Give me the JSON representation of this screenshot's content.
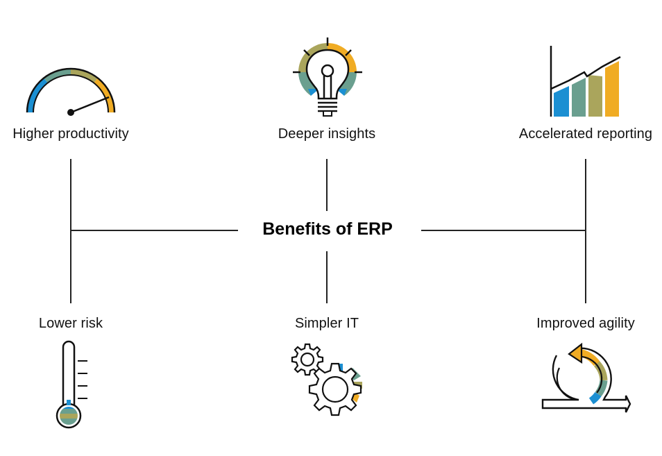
{
  "title": "Benefits of ERP",
  "benefits": {
    "higher_productivity": "Higher productivity",
    "deeper_insights": "Deeper insights",
    "accelerated_reporting": "Accelerated reporting",
    "lower_risk": "Lower risk",
    "simpler_it": "Simpler IT",
    "improved_agility": "Improved agility"
  },
  "icons": {
    "higher_productivity": "speedometer-icon",
    "deeper_insights": "lightbulb-icon",
    "accelerated_reporting": "bar-chart-icon",
    "lower_risk": "thermometer-icon",
    "simpler_it": "gears-icon",
    "improved_agility": "cycle-arrow-icon"
  },
  "colors": {
    "blue": "#1b8fd2",
    "teal": "#6a9f8f",
    "olive": "#aaa55c",
    "gold": "#f0ac24",
    "line": "#222222"
  }
}
